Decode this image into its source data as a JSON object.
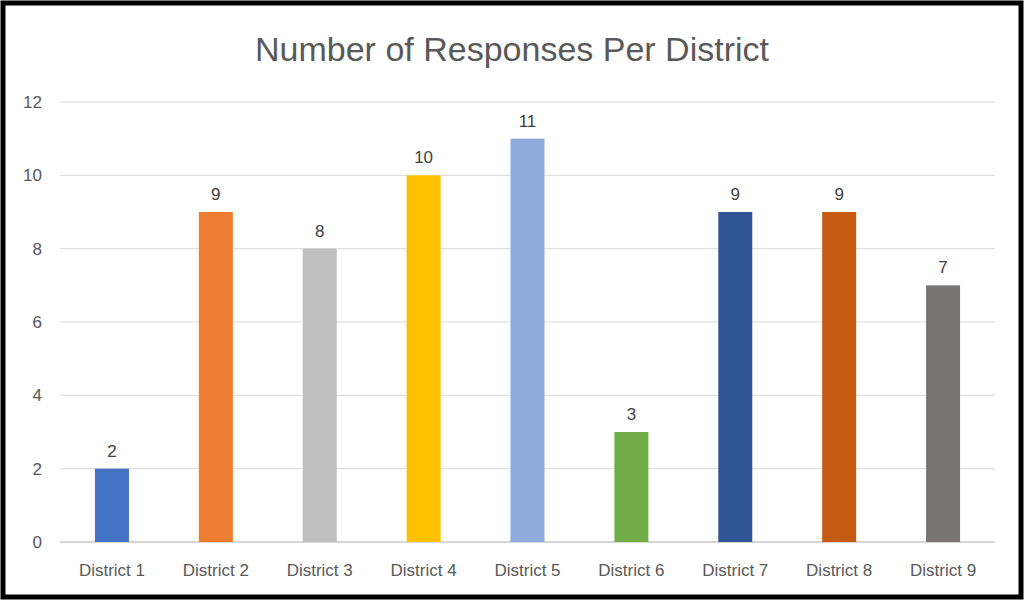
{
  "chart_data": {
    "type": "bar",
    "title": "Number of Responses Per District",
    "categories": [
      "District 1",
      "District 2",
      "District 3",
      "District 4",
      "District 5",
      "District 6",
      "District 7",
      "District 8",
      "District 9"
    ],
    "values": [
      2,
      9,
      8,
      10,
      11,
      3,
      9,
      9,
      7
    ],
    "colors": [
      "#4472c4",
      "#ed7d31",
      "#bfbfbf",
      "#ffc000",
      "#8faadc",
      "#70ad47",
      "#2f5597",
      "#c55a11",
      "#7a7574"
    ],
    "ylim": [
      0,
      12
    ],
    "yticks": [
      0,
      2,
      4,
      6,
      8,
      10,
      12
    ],
    "grid": true,
    "data_labels": true
  }
}
